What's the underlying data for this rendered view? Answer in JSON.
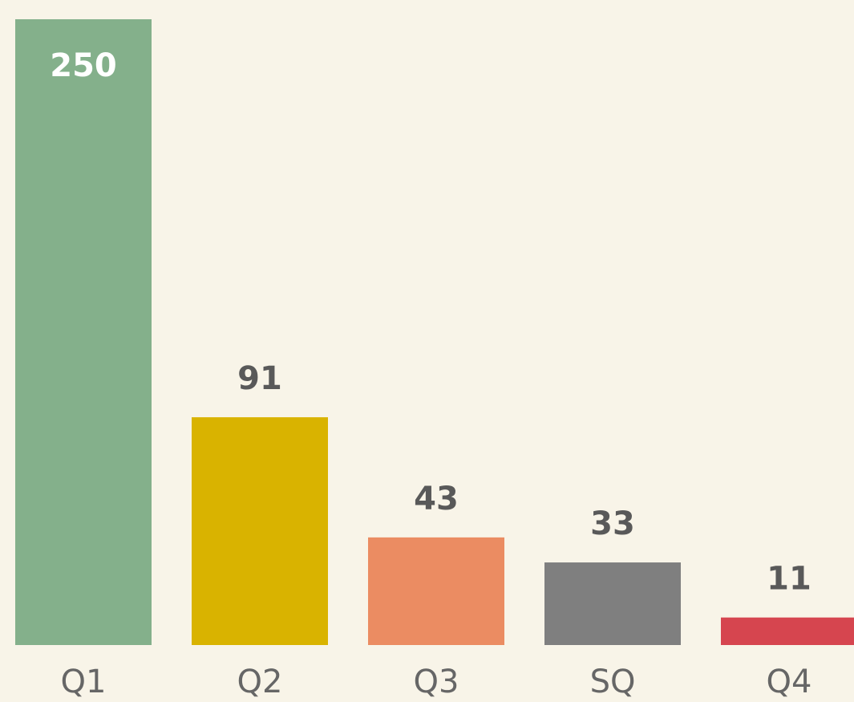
{
  "chart_data": {
    "type": "bar",
    "categories": [
      "Q1",
      "Q2",
      "Q3",
      "SQ",
      "Q4"
    ],
    "values": [
      250,
      91,
      43,
      33,
      11
    ],
    "colors": [
      "#84b08b",
      "#d9b300",
      "#eb8c62",
      "#7f7f7f",
      "#d6454f"
    ],
    "grid": false
  }
}
